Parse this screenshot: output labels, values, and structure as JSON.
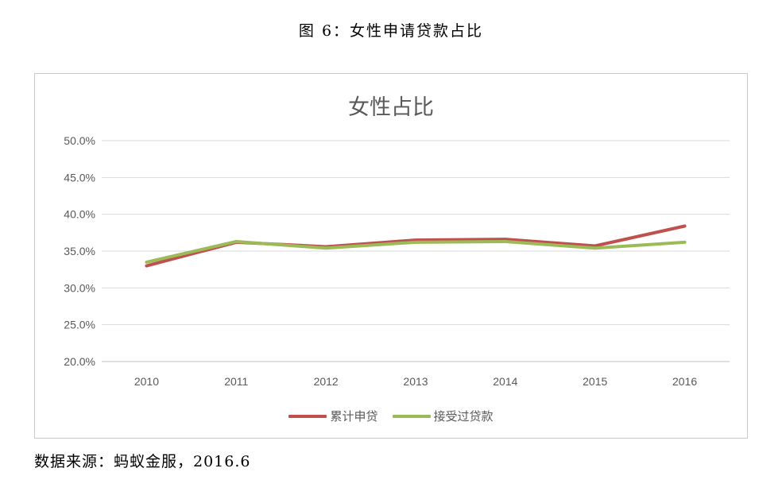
{
  "figure": {
    "caption": "图 6：女性申请贷款占比",
    "source": "数据来源：蚂蚁金服，2016.6"
  },
  "chart_data": {
    "type": "line",
    "title": "女性占比",
    "xlabel": "",
    "ylabel": "",
    "categories": [
      "2010",
      "2011",
      "2012",
      "2013",
      "2014",
      "2015",
      "2016"
    ],
    "ylim": [
      0.2,
      0.5
    ],
    "yticks": [
      0.2,
      0.25,
      0.3,
      0.35,
      0.4,
      0.45,
      0.5
    ],
    "ytick_labels": [
      "20.0%",
      "25.0%",
      "30.0%",
      "35.0%",
      "40.0%",
      "45.0%",
      "50.0%"
    ],
    "grid": true,
    "legend_position": "bottom",
    "series": [
      {
        "name": "累计申贷",
        "color": "#c0504d",
        "values": [
          0.33,
          0.362,
          0.356,
          0.365,
          0.366,
          0.357,
          0.384
        ]
      },
      {
        "name": "接受过贷款",
        "color": "#9bbb59",
        "values": [
          0.335,
          0.363,
          0.354,
          0.362,
          0.363,
          0.354,
          0.362
        ]
      }
    ]
  }
}
